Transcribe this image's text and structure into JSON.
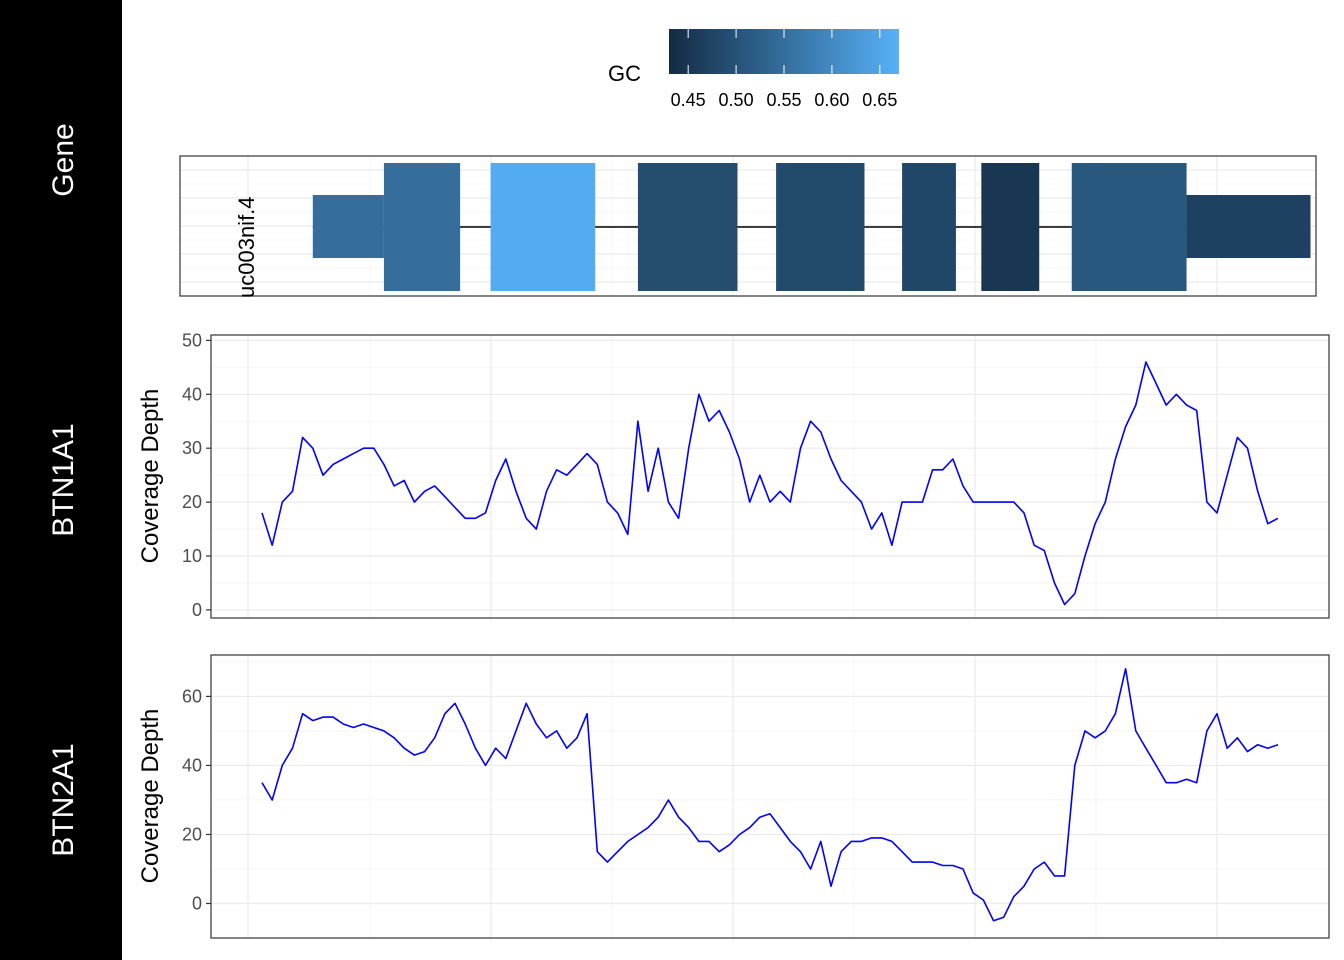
{
  "chart_data": {
    "type": "line",
    "legend": {
      "title": "GC",
      "ticks": [
        "0.45",
        "0.50",
        "0.55",
        "0.60",
        "0.65"
      ],
      "range": [
        0.43,
        0.67
      ],
      "color_low": "#132B43",
      "color_high": "#56B1F7",
      "placement": "top"
    },
    "gene_track": {
      "strip_label": "Gene",
      "transcript": "uc003nif.4",
      "exons": [
        {
          "x0": 0.05,
          "x1": 0.12,
          "thick": false,
          "gc": 0.55
        },
        {
          "x0": 0.12,
          "x1": 0.195,
          "thick": true,
          "gc": 0.55
        },
        {
          "x0": 0.225,
          "x1": 0.328,
          "thick": true,
          "gc": 0.66
        },
        {
          "x0": 0.37,
          "x1": 0.468,
          "thick": true,
          "gc": 0.49
        },
        {
          "x0": 0.506,
          "x1": 0.593,
          "thick": true,
          "gc": 0.485
        },
        {
          "x0": 0.63,
          "x1": 0.683,
          "thick": true,
          "gc": 0.48
        },
        {
          "x0": 0.708,
          "x1": 0.765,
          "thick": true,
          "gc": 0.45
        },
        {
          "x0": 0.797,
          "x1": 0.91,
          "thick": true,
          "gc": 0.51
        },
        {
          "x0": 0.91,
          "x1": 1.032,
          "thick": false,
          "gc": 0.47
        }
      ]
    },
    "panels": [
      {
        "strip_label": "BTN1A1",
        "ylabel": "Coverage Depth",
        "ylim": [
          -1.5,
          51
        ],
        "yticks": [
          "0",
          "10",
          "20",
          "30",
          "40",
          "50"
        ],
        "color": "#0000FF",
        "x": [
          0.0,
          0.01,
          0.02,
          0.03,
          0.04,
          0.05,
          0.06,
          0.07,
          0.08,
          0.09,
          0.1,
          0.11,
          0.12,
          0.13,
          0.14,
          0.15,
          0.16,
          0.17,
          0.18,
          0.19,
          0.2,
          0.21,
          0.22,
          0.23,
          0.24,
          0.25,
          0.26,
          0.27,
          0.28,
          0.29,
          0.3,
          0.31,
          0.32,
          0.33,
          0.34,
          0.35,
          0.36,
          0.37,
          0.38,
          0.39,
          0.4,
          0.41,
          0.42,
          0.43,
          0.44,
          0.45,
          0.46,
          0.47,
          0.48,
          0.49,
          0.5,
          0.51,
          0.52,
          0.53,
          0.54,
          0.55,
          0.56,
          0.57,
          0.58,
          0.59,
          0.6,
          0.61,
          0.62,
          0.63,
          0.64,
          0.65,
          0.66,
          0.67,
          0.68,
          0.69,
          0.7,
          0.71,
          0.72,
          0.73,
          0.74,
          0.75,
          0.76,
          0.77,
          0.78,
          0.79,
          0.8,
          0.81,
          0.82,
          0.83,
          0.84,
          0.85,
          0.86,
          0.87,
          0.88,
          0.89,
          0.9,
          0.91,
          0.92,
          0.93,
          0.94,
          0.95,
          0.96,
          0.97,
          0.98,
          0.99,
          1.0
        ],
        "y": [
          18,
          12,
          20,
          22,
          32,
          30,
          25,
          27,
          28,
          29,
          30,
          30,
          27,
          23,
          24,
          20,
          22,
          23,
          21,
          19,
          17,
          17,
          18,
          24,
          28,
          22,
          17,
          15,
          22,
          26,
          25,
          27,
          29,
          27,
          20,
          18,
          14,
          35,
          22,
          30,
          20,
          17,
          30,
          40,
          35,
          37,
          33,
          28,
          20,
          25,
          20,
          22,
          20,
          30,
          35,
          33,
          28,
          24,
          22,
          20,
          15,
          18,
          12,
          20,
          20,
          20,
          26,
          26,
          28,
          23,
          20,
          20,
          20,
          20,
          20,
          18,
          12,
          11,
          5,
          1,
          3,
          10,
          16,
          20,
          28,
          34,
          38,
          46,
          42,
          38,
          40,
          38,
          37,
          20,
          18,
          25,
          32,
          30,
          22,
          16,
          17
        ]
      },
      {
        "strip_label": "BTN2A1",
        "ylabel": "Coverage Depth",
        "ylim": [
          -10,
          72
        ],
        "yticks": [
          "0",
          "20",
          "40",
          "60"
        ],
        "color": "#0000FF",
        "x": [
          0.0,
          0.01,
          0.02,
          0.03,
          0.04,
          0.05,
          0.06,
          0.07,
          0.08,
          0.09,
          0.1,
          0.11,
          0.12,
          0.13,
          0.14,
          0.15,
          0.16,
          0.17,
          0.18,
          0.19,
          0.2,
          0.21,
          0.22,
          0.23,
          0.24,
          0.25,
          0.26,
          0.27,
          0.28,
          0.29,
          0.3,
          0.31,
          0.32,
          0.33,
          0.34,
          0.35,
          0.36,
          0.37,
          0.38,
          0.39,
          0.4,
          0.41,
          0.42,
          0.43,
          0.44,
          0.45,
          0.46,
          0.47,
          0.48,
          0.49,
          0.5,
          0.51,
          0.52,
          0.53,
          0.54,
          0.55,
          0.56,
          0.57,
          0.58,
          0.59,
          0.6,
          0.61,
          0.62,
          0.63,
          0.64,
          0.65,
          0.66,
          0.67,
          0.68,
          0.69,
          0.7,
          0.71,
          0.72,
          0.73,
          0.74,
          0.75,
          0.76,
          0.77,
          0.78,
          0.79,
          0.8,
          0.81,
          0.82,
          0.83,
          0.84,
          0.85,
          0.86,
          0.87,
          0.88,
          0.89,
          0.9,
          0.91,
          0.92,
          0.93,
          0.94,
          0.95,
          0.96,
          0.97,
          0.98,
          0.99,
          1.0
        ],
        "y": [
          35,
          30,
          40,
          45,
          55,
          53,
          54,
          54,
          52,
          51,
          52,
          51,
          50,
          48,
          45,
          43,
          44,
          48,
          55,
          58,
          52,
          45,
          40,
          45,
          42,
          50,
          58,
          52,
          48,
          50,
          45,
          48,
          55,
          15,
          12,
          15,
          18,
          20,
          22,
          25,
          30,
          25,
          22,
          18,
          18,
          15,
          17,
          20,
          22,
          25,
          26,
          22,
          18,
          15,
          10,
          18,
          5,
          15,
          18,
          18,
          19,
          19,
          18,
          15,
          12,
          12,
          12,
          11,
          11,
          10,
          3,
          1,
          -5,
          -4,
          2,
          5,
          10,
          12,
          8,
          8,
          40,
          50,
          48,
          50,
          55,
          68,
          50,
          45,
          40,
          35,
          35,
          36,
          35,
          50,
          55,
          45,
          48,
          44,
          46,
          45,
          46
        ]
      }
    ]
  }
}
